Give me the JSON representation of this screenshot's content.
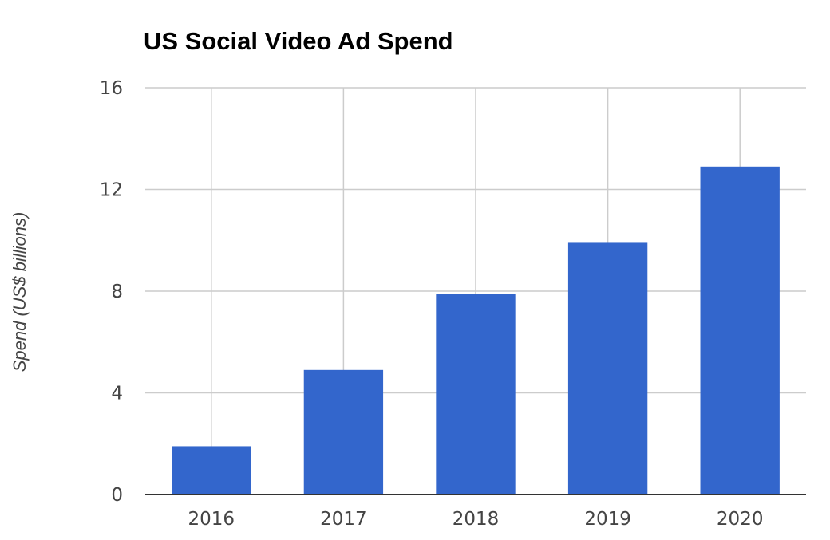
{
  "chart_data": {
    "type": "bar",
    "title": "US Social Video Ad Spend",
    "xlabel": "",
    "ylabel": "Spend (US$ billions)",
    "categories": [
      "2016",
      "2017",
      "2018",
      "2019",
      "2020"
    ],
    "values": [
      1.9,
      4.9,
      7.9,
      9.9,
      12.9
    ],
    "ylim": [
      0,
      16
    ],
    "yticks": [
      0,
      4,
      8,
      12,
      16
    ],
    "grid": true,
    "legend": "none",
    "colors": {
      "bar": "#3366cc",
      "grid": "#cccccc",
      "baseline": "#333333",
      "text": "#444444"
    }
  }
}
